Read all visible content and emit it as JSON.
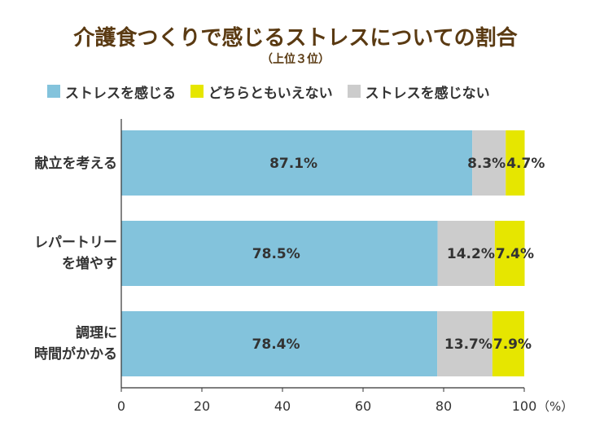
{
  "title": "介護食つくりで感じるストレスについての割合",
  "subtitle": "（上位３位）",
  "colors": {
    "stress": "#83c3dc",
    "neutral": "#e6e600",
    "no_stress": "#cccccc",
    "title": "#5a3a12",
    "axis": "#333333"
  },
  "chart_data": {
    "type": "bar",
    "orientation": "horizontal",
    "stacked": true,
    "categories": [
      [
        "献立を考える"
      ],
      [
        "レパートリー",
        "を増やす"
      ],
      [
        "調理に",
        "時間がかかる"
      ]
    ],
    "series": [
      {
        "name": "ストレスを感じる",
        "color": "#83c3dc",
        "values": [
          87.1,
          78.5,
          78.4
        ],
        "labels": [
          "87.1%",
          "78.5%",
          "78.4%"
        ]
      },
      {
        "name": "ストレスを感じない",
        "color": "#cccccc",
        "values": [
          8.3,
          14.2,
          13.7
        ],
        "labels": [
          "8.3%",
          "14.2%",
          "13.7%"
        ]
      },
      {
        "name": "どちらともいえない",
        "color": "#e6e600",
        "values": [
          4.7,
          7.4,
          7.9
        ],
        "labels": [
          "4.7%",
          "7.4%",
          "7.9%"
        ]
      }
    ],
    "legend_order": [
      "ストレスを感じる",
      "どちらともいえない",
      "ストレスを感じない"
    ],
    "xlim": [
      0,
      100
    ],
    "x_ticks": [
      "0",
      "20",
      "40",
      "60",
      "80",
      "100"
    ],
    "x_unit": "（%）",
    "grid": false,
    "legend_position": "top"
  }
}
